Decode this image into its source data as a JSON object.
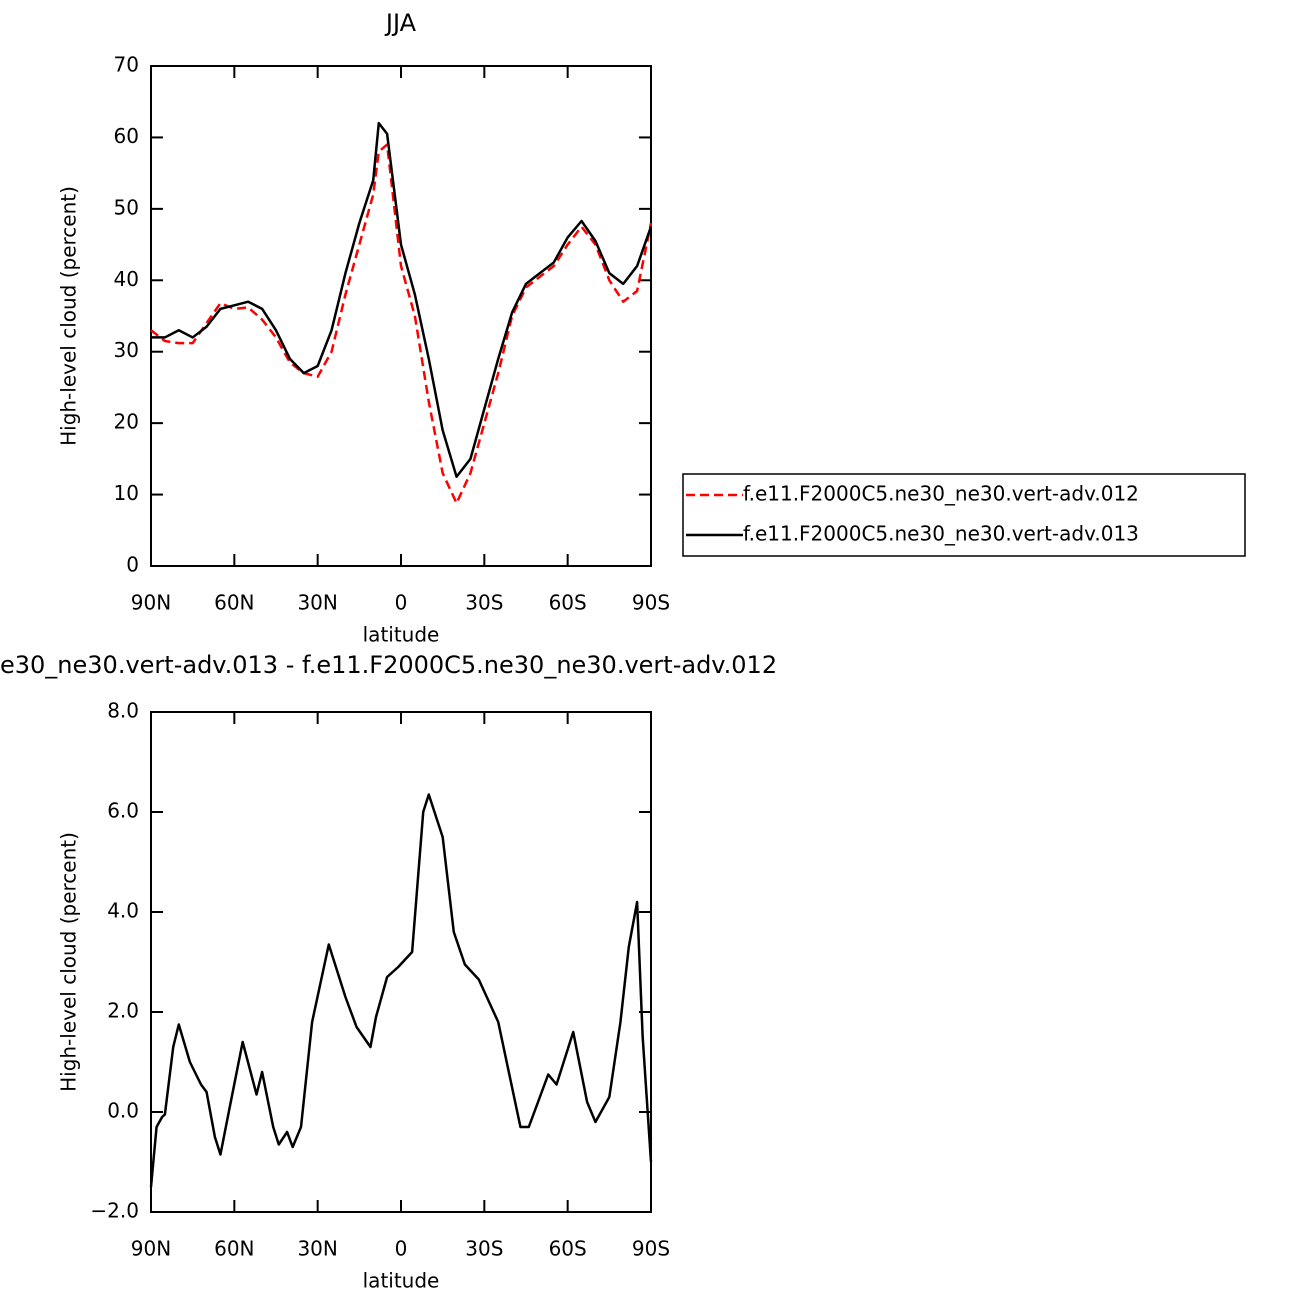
{
  "chart_data": [
    {
      "type": "line",
      "title": "JJA",
      "xlabel": "latitude",
      "ylabel": "High-level cloud (percent)",
      "x": [
        90,
        85,
        80,
        75,
        70,
        65,
        60,
        55,
        50,
        45,
        40,
        35,
        30,
        25,
        20,
        15,
        10,
        8,
        5,
        0,
        -5,
        -10,
        -15,
        -20,
        -25,
        -30,
        -35,
        -40,
        -45,
        -50,
        -55,
        -60,
        -65,
        -70,
        -75,
        -80,
        -85,
        -90
      ],
      "series": [
        {
          "name": "f.e11.F2000C5.ne30_ne30.vert-adv.012",
          "color": "#ff0000",
          "line_style": "dashed",
          "values": [
            33,
            31.5,
            31.2,
            31.2,
            34,
            36.8,
            36,
            36.2,
            34.5,
            32,
            28.5,
            27,
            26.5,
            30,
            38,
            45,
            52,
            58,
            59,
            42,
            35,
            23,
            13,
            8.8,
            13,
            20,
            27,
            35,
            39,
            40.5,
            42,
            45,
            47.5,
            45,
            40,
            37,
            38.5,
            48
          ]
        },
        {
          "name": "f.e11.F2000C5.ne30_ne30.vert-adv.013",
          "color": "#000000",
          "line_style": "solid",
          "values": [
            32,
            32,
            33,
            32,
            33.5,
            36,
            36.5,
            37,
            36,
            33,
            29,
            27,
            28,
            33,
            41,
            48,
            54,
            62,
            60.5,
            45,
            38,
            29,
            19,
            12.5,
            15,
            22,
            29,
            35.5,
            39.5,
            41,
            42.5,
            46,
            48.3,
            45.5,
            41,
            39.5,
            42,
            47.5
          ]
        }
      ],
      "xlim": [
        90,
        -90
      ],
      "xticks": [
        {
          "value": 90,
          "label": "90N"
        },
        {
          "value": 60,
          "label": "60N"
        },
        {
          "value": 30,
          "label": "30N"
        },
        0,
        {
          "value": -30,
          "label": "30S"
        },
        {
          "value": -60,
          "label": "60S"
        },
        {
          "value": -90,
          "label": "90S"
        }
      ],
      "ylim": [
        0,
        70
      ],
      "yticks": [
        0,
        10,
        20,
        30,
        40,
        50,
        60,
        70
      ],
      "legend": "right"
    },
    {
      "type": "line",
      "title": "e30_ne30.vert-adv.013 - f.e11.F2000C5.ne30_ne30.vert-adv.012",
      "xlabel": "latitude",
      "ylabel": "High-level cloud (percent)",
      "x": [
        90,
        88,
        86,
        85,
        82,
        80,
        76,
        72,
        70,
        67,
        65,
        62,
        57,
        52,
        50,
        46,
        44,
        41,
        39,
        36,
        32,
        26,
        20,
        16,
        11,
        9,
        5,
        1,
        -4,
        -8,
        -10,
        -15,
        -19,
        -23,
        -28,
        -35,
        -43,
        -46,
        -53,
        -56,
        -62,
        -67,
        -70,
        -75,
        -79,
        -82,
        -85,
        -87,
        -90
      ],
      "series": [
        {
          "color": "#000000",
          "line_style": "solid",
          "values": [
            -1.5,
            -0.3,
            -0.1,
            -0.05,
            1.3,
            1.75,
            1.0,
            0.55,
            0.4,
            -0.5,
            -0.85,
            0.0,
            1.4,
            0.35,
            0.8,
            -0.3,
            -0.65,
            -0.4,
            -0.7,
            -0.3,
            1.8,
            3.35,
            2.3,
            1.7,
            1.3,
            1.9,
            2.7,
            2.9,
            3.2,
            6.0,
            6.35,
            5.5,
            3.6,
            2.95,
            2.65,
            1.8,
            -0.3,
            -0.3,
            0.75,
            0.55,
            1.6,
            0.2,
            -0.2,
            0.3,
            1.8,
            3.3,
            4.2,
            1.5,
            -1.0
          ]
        }
      ],
      "xlim": [
        90,
        -90
      ],
      "xticks": [
        {
          "value": 90,
          "label": "90N"
        },
        {
          "value": 60,
          "label": "60N"
        },
        {
          "value": 30,
          "label": "30N"
        },
        0,
        {
          "value": -30,
          "label": "30S"
        },
        {
          "value": -60,
          "label": "60S"
        },
        {
          "value": -90,
          "label": "90S"
        }
      ],
      "ylim": [
        -2,
        8
      ],
      "yticks": [
        {
          "value": -2,
          "label": "−2.0"
        },
        {
          "value": 0,
          "label": "0.0"
        },
        {
          "value": 2,
          "label": "2.0"
        },
        {
          "value": 4,
          "label": "4.0"
        },
        {
          "value": 6,
          "label": "6.0"
        },
        {
          "value": 8,
          "label": "8.0"
        }
      ]
    }
  ]
}
